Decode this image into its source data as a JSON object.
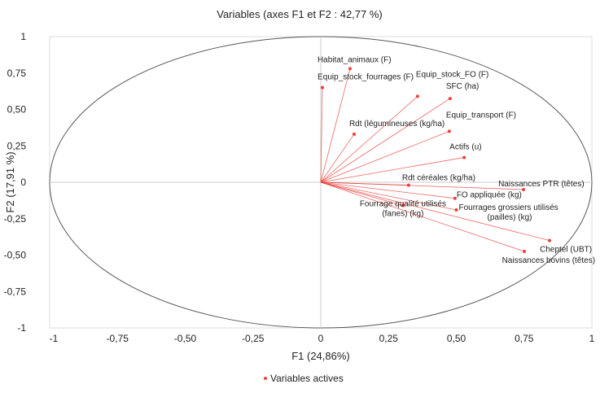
{
  "chart_data": {
    "type": "scatter",
    "title": "Variables (axes F1 et F2 : 42,77 %)",
    "xlabel": "F1 (24,86%)",
    "ylabel": "F2 (17,91 %)",
    "xlim": [
      -1,
      1
    ],
    "ylim": [
      -1,
      1
    ],
    "xticks": [
      "-1",
      "-0,75",
      "-0,50",
      "-0,25",
      "0",
      "0,25",
      "0,50",
      "0,75",
      "1"
    ],
    "yticks": [
      "1",
      "0,75",
      "0,50",
      "0,25",
      "0",
      "-0,25",
      "-0,50",
      "-0,75",
      "-1"
    ],
    "grid": false,
    "legend": {
      "position": "bottom",
      "entries": [
        "Variables actives"
      ]
    },
    "series_color": "#e8413c",
    "points": [
      {
        "label": "Habitat_animaux (F)",
        "x": 0.108,
        "y": 0.78
      },
      {
        "label": "Equip_stock_fourrages (F)",
        "x": 0.006,
        "y": 0.65
      },
      {
        "label": "Equip_stock_FO (F)",
        "x": 0.357,
        "y": 0.59
      },
      {
        "label": "SFC (ha)",
        "x": 0.477,
        "y": 0.575
      },
      {
        "label": "Rdt (légumineuses (kg/ha)",
        "x": 0.123,
        "y": 0.33
      },
      {
        "label": "Equip_transport (F)",
        "x": 0.474,
        "y": 0.35
      },
      {
        "label": "Actifs (u)",
        "x": 0.529,
        "y": 0.17
      },
      {
        "label": "Rdt céréales (kg/ha)",
        "x": 0.324,
        "y": -0.02
      },
      {
        "label": "Naissances PTR (têtes)",
        "x": 0.748,
        "y": -0.05
      },
      {
        "label": "FO appliquée (kg)",
        "x": 0.495,
        "y": -0.11
      },
      {
        "label": "Fourrages grossiers utilisés (pailles) (kg)",
        "x": 0.5,
        "y": -0.19
      },
      {
        "label": "Fourrage qualité utilisés (fanes) (kg)",
        "x": 0.303,
        "y": -0.16
      },
      {
        "label": "Cheptel (UBT)",
        "x": 0.844,
        "y": -0.4
      },
      {
        "label": "Naissances bovins (têtes)",
        "x": 0.751,
        "y": -0.475
      }
    ]
  }
}
